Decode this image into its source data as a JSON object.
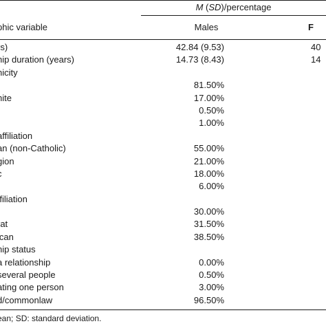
{
  "table": {
    "group_header_prefix": "M",
    "group_header_sd": "SD",
    "group_header_suffix": "/percentage",
    "col_variable": "phic variable",
    "col_males": "Males",
    "col_females": "F",
    "rows": [
      {
        "label": "rs)",
        "males": "42.84 (9.53)",
        "females": "40"
      },
      {
        "label": "hip duration (years)",
        "males": "14.73 (8.43)",
        "females": "14"
      },
      {
        "label": "nicity",
        "males": "",
        "females": ""
      },
      {
        "label": "",
        "males": "81.50%",
        "females": ""
      },
      {
        "label": "hite",
        "males": "17.00%",
        "females": ""
      },
      {
        "label": "",
        "males": "0.50%",
        "females": ""
      },
      {
        "label": "",
        "males": "1.00%",
        "females": ""
      },
      {
        "label": "affiliation",
        "males": "",
        "females": ""
      },
      {
        "label": "an (non-Catholic)",
        "males": "55.00%",
        "females": ""
      },
      {
        "label": "gion",
        "males": "21.00%",
        "females": ""
      },
      {
        "label": "c",
        "males": "18.00%",
        "females": ""
      },
      {
        "label": "",
        "males": "6.00%",
        "females": ""
      },
      {
        "label": "ffiliation",
        "males": "",
        "females": ""
      },
      {
        "label": "",
        "males": "30.00%",
        "females": ""
      },
      {
        "label": "rat",
        "males": "31.50%",
        "females": ""
      },
      {
        "label": "ican",
        "males": "38.50%",
        "females": ""
      },
      {
        "label": "hip status",
        "males": "",
        "females": ""
      },
      {
        "label": "a relationship",
        "males": "0.00%",
        "females": ""
      },
      {
        "label": "several people",
        "males": "0.50%",
        "females": ""
      },
      {
        "label": "ating one person",
        "males": "3.00%",
        "females": ""
      },
      {
        "label": "d/commonlaw",
        "males": "96.50%",
        "females": ""
      }
    ],
    "footnote": "ean; SD: standard deviation."
  }
}
